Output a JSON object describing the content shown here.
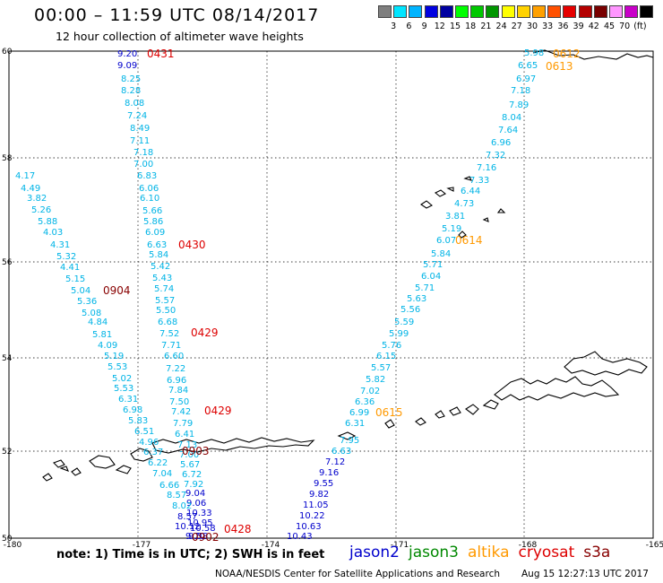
{
  "header": {
    "title": "00:00 – 11:59 UTC 08/14/2017",
    "subtitle": "12 hour collection of altimeter wave heights"
  },
  "scale": {
    "colors": [
      "#7f7f7f",
      "#00e5ff",
      "#00b4ff",
      "#0000e0",
      "#0000a0",
      "#00ff00",
      "#00c800",
      "#009600",
      "#ffff00",
      "#ffd200",
      "#ffa000",
      "#ff5000",
      "#e60000",
      "#b40000",
      "#780000",
      "#ff96ff",
      "#c800c8",
      "#000000"
    ],
    "labels": [
      "3",
      "6",
      "9",
      "12",
      "15",
      "18",
      "21",
      "24",
      "27",
      "30",
      "33",
      "36",
      "39",
      "42",
      "45",
      "70",
      "(ft)"
    ]
  },
  "axes": {
    "lon_ticks": [
      "-180",
      "-177",
      "-174",
      "-171",
      "-168",
      "-165"
    ],
    "lat_ticks": [
      "60",
      "58",
      "56",
      "54",
      "52",
      "50"
    ]
  },
  "colors": {
    "jason2": "#0000cc",
    "jason3": "#008800",
    "altika": "#ff9900",
    "cryosat": "#dd0000",
    "s3a": "#880000",
    "light": "#00b4e6"
  },
  "tracks": {
    "track_a": {
      "values": [
        "9.20",
        "9.09",
        "8.25",
        "8.28",
        "8.08",
        "7.24",
        "8.49",
        "7.11",
        "7.18",
        "7.00",
        "6.83",
        "6.06",
        "6.10",
        "5.66",
        "5.86",
        "6.09",
        "6.63",
        "5.84",
        "5.42",
        "5.43",
        "5.74",
        "5.57",
        "5.50",
        "6.68",
        "7.52",
        "7.71",
        "6.60",
        "7.22",
        "6.96",
        "7.84",
        "7.50",
        "7.42",
        "7.79",
        "6.41",
        "7.13",
        "7.00",
        "5.67",
        "6.72",
        "7.92",
        "9.04",
        "9.06",
        "10.33",
        "10.95",
        "10.58",
        "9.70"
      ],
      "time_labels": [
        "0431",
        "0430",
        "0429",
        "0429",
        "0428"
      ]
    },
    "track_b": {
      "values": [
        "4.17",
        "4.49",
        "3.82",
        "5.26",
        "5.88",
        "4.03",
        "4.31",
        "5.32",
        "4.41",
        "5.15",
        "5.04",
        "5.36",
        "5.08",
        "4.84",
        "5.81",
        "4.09",
        "5.19",
        "5.53",
        "5.02",
        "5.53",
        "6.31",
        "6.98",
        "5.83",
        "6.51",
        "4.96",
        "6.37",
        "6.22",
        "7.04",
        "6.66",
        "8.57",
        "8.02",
        "8.57",
        "10.12",
        "9.58"
      ],
      "time_labels": [
        "0904",
        "0903",
        "0902"
      ]
    },
    "track_c": {
      "values": [
        "5.98",
        "6.65",
        "6.97",
        "7.18",
        "7.89",
        "8.04",
        "7.64",
        "6.96",
        "7.32",
        "7.16",
        "7.33",
        "6.44",
        "4.73",
        "3.81",
        "5.19",
        "6.07",
        "5.84",
        "5.71",
        "6.04",
        "5.71",
        "5.63",
        "5.56",
        "5.59",
        "5.99",
        "5.76",
        "6.15",
        "5.57",
        "5.82",
        "7.02",
        "6.36",
        "6.99",
        "6.31",
        "7.95",
        "6.63",
        "7.12",
        "9.16",
        "9.55",
        "9.82",
        "11.05",
        "10.22",
        "10.63",
        "10.43"
      ],
      "time_labels": [
        "0612",
        "0613",
        "0614",
        "0615"
      ]
    }
  },
  "footer": {
    "note": "note: 1) Time is in UTC; 2) SWH is in feet",
    "satellites": [
      {
        "name": "jason2",
        "color": "#0000cc"
      },
      {
        "name": "jason3",
        "color": "#008800"
      },
      {
        "name": "altika",
        "color": "#ff9900"
      },
      {
        "name": "cryosat",
        "color": "#dd0000"
      },
      {
        "name": "s3a",
        "color": "#880000"
      }
    ],
    "credit": "NOAA/NESDIS Center for Satellite Applications and Research",
    "timestamp": "Aug 15 12:27:13 UTC 2017"
  }
}
